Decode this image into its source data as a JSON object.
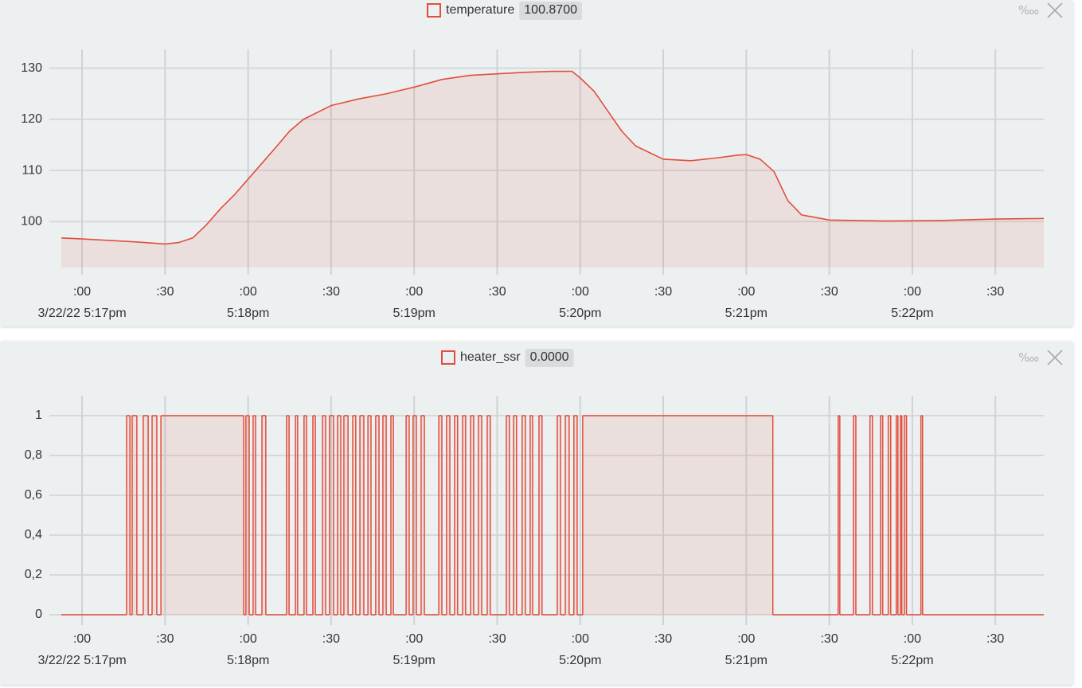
{
  "chart_data": [
    {
      "type": "line",
      "fill": true,
      "grid": true,
      "xlim": [
        "2022-03-22T17:16:52.5",
        "2022-03-22T17:22:47.5"
      ],
      "xticks": [
        {
          "value": "2022-03-22T17:17:00",
          "label": ":00"
        },
        {
          "value": "2022-03-22T17:17:30",
          "label": ":30"
        },
        {
          "value": "2022-03-22T17:18:00",
          "label": ":00"
        },
        {
          "value": "2022-03-22T17:18:30",
          "label": ":30"
        },
        {
          "value": "2022-03-22T17:19:00",
          "label": ":00"
        },
        {
          "value": "2022-03-22T17:19:30",
          "label": ":30"
        },
        {
          "value": "2022-03-22T17:20:00",
          "label": ":00"
        },
        {
          "value": "2022-03-22T17:20:30",
          "label": ":30"
        },
        {
          "value": "2022-03-22T17:21:00",
          "label": ":00"
        },
        {
          "value": "2022-03-22T17:21:30",
          "label": ":30"
        },
        {
          "value": "2022-03-22T17:22:00",
          "label": ":00"
        },
        {
          "value": "2022-03-22T17:22:30",
          "label": ":30"
        }
      ],
      "xticks_major": [
        {
          "value": "2022-03-22T17:17:00",
          "label": "3/22/22 5:17pm"
        },
        {
          "value": "2022-03-22T17:18:00",
          "label": "5:18pm"
        },
        {
          "value": "2022-03-22T17:19:00",
          "label": "5:19pm"
        },
        {
          "value": "2022-03-22T17:20:00",
          "label": "5:20pm"
        },
        {
          "value": "2022-03-22T17:21:00",
          "label": "5:21pm"
        },
        {
          "value": "2022-03-22T17:22:00",
          "label": "5:22pm"
        }
      ],
      "ylim": [
        91,
        134
      ],
      "yticks": [
        100,
        110,
        120,
        130
      ],
      "legend_value": 100.87,
      "legend_value_label": "100.8700",
      "scale_toggle": "‱",
      "x": [
        "2022-03-22T17:16:52.5",
        "2022-03-22T17:17:00",
        "2022-03-22T17:17:10",
        "2022-03-22T17:17:20",
        "2022-03-22T17:17:30",
        "2022-03-22T17:17:35",
        "2022-03-22T17:17:40",
        "2022-03-22T17:17:45",
        "2022-03-22T17:17:50",
        "2022-03-22T17:17:55",
        "2022-03-22T17:18:00",
        "2022-03-22T17:18:05",
        "2022-03-22T17:18:10",
        "2022-03-22T17:18:15",
        "2022-03-22T17:18:20",
        "2022-03-22T17:18:30",
        "2022-03-22T17:18:40",
        "2022-03-22T17:18:50",
        "2022-03-22T17:19:00",
        "2022-03-22T17:19:10",
        "2022-03-22T17:19:20",
        "2022-03-22T17:19:30",
        "2022-03-22T17:19:40",
        "2022-03-22T17:19:50",
        "2022-03-22T17:19:57",
        "2022-03-22T17:20:00",
        "2022-03-22T17:20:05",
        "2022-03-22T17:20:10",
        "2022-03-22T17:20:15",
        "2022-03-22T17:20:20",
        "2022-03-22T17:20:30",
        "2022-03-22T17:20:40",
        "2022-03-22T17:20:50",
        "2022-03-22T17:20:57",
        "2022-03-22T17:21:00",
        "2022-03-22T17:21:05",
        "2022-03-22T17:21:10",
        "2022-03-22T17:21:15",
        "2022-03-22T17:21:20",
        "2022-03-22T17:21:30",
        "2022-03-22T17:21:50",
        "2022-03-22T17:22:10",
        "2022-03-22T17:22:30",
        "2022-03-22T17:22:47.5"
      ],
      "series": [
        {
          "name": "temperature",
          "color": "#e24d3c",
          "values": [
            96.8,
            96.6,
            96.3,
            96.0,
            95.6,
            95.9,
            96.8,
            99.4,
            102.5,
            105.2,
            108.3,
            111.4,
            114.5,
            117.7,
            120,
            122.7,
            124,
            125,
            126.3,
            127.8,
            128.6,
            128.9,
            129.2,
            129.4,
            129.4,
            128.1,
            125.5,
            121.6,
            117.7,
            114.8,
            112.2,
            111.9,
            112.5,
            113.0,
            113.1,
            112.2,
            109.8,
            104.1,
            101.3,
            100.3,
            100.1,
            100.2,
            100.5,
            100.6
          ]
        }
      ]
    },
    {
      "type": "line",
      "fill": true,
      "step": "after",
      "grid": true,
      "xlim": [
        "2022-03-22T17:16:52.5",
        "2022-03-22T17:22:47.5"
      ],
      "xticks": [
        {
          "value": "2022-03-22T17:17:00",
          "label": ":00"
        },
        {
          "value": "2022-03-22T17:17:30",
          "label": ":30"
        },
        {
          "value": "2022-03-22T17:18:00",
          "label": ":00"
        },
        {
          "value": "2022-03-22T17:18:30",
          "label": ":30"
        },
        {
          "value": "2022-03-22T17:19:00",
          "label": ":00"
        },
        {
          "value": "2022-03-22T17:19:30",
          "label": ":30"
        },
        {
          "value": "2022-03-22T17:20:00",
          "label": ":00"
        },
        {
          "value": "2022-03-22T17:20:30",
          "label": ":30"
        },
        {
          "value": "2022-03-22T17:21:00",
          "label": ":00"
        },
        {
          "value": "2022-03-22T17:21:30",
          "label": ":30"
        },
        {
          "value": "2022-03-22T17:22:00",
          "label": ":00"
        },
        {
          "value": "2022-03-22T17:22:30",
          "label": ":30"
        }
      ],
      "xticks_major": [
        {
          "value": "2022-03-22T17:17:00",
          "label": "3/22/22 5:17pm"
        },
        {
          "value": "2022-03-22T17:18:00",
          "label": "5:18pm"
        },
        {
          "value": "2022-03-22T17:19:00",
          "label": "5:19pm"
        },
        {
          "value": "2022-03-22T17:20:00",
          "label": "5:20pm"
        },
        {
          "value": "2022-03-22T17:21:00",
          "label": "5:21pm"
        },
        {
          "value": "2022-03-22T17:22:00",
          "label": "5:22pm"
        }
      ],
      "ylim": [
        -0.05,
        1.1
      ],
      "yticks": [
        0,
        {
          "value": 0.2,
          "label": "0,2"
        },
        {
          "value": 0.4,
          "label": "0,4"
        },
        {
          "value": 0.6,
          "label": "0,6"
        },
        {
          "value": 0.8,
          "label": "0,8"
        },
        1
      ],
      "legend_value": 0,
      "legend_value_label": "0.0000",
      "scale_toggle": "‱",
      "x": [
        "2022-03-22T17:16:52.5",
        "2022-03-22T17:17:16.1",
        "2022-03-22T17:17:17.3",
        "2022-03-22T17:17:18.1",
        "2022-03-22T17:17:19.8",
        "2022-03-22T17:17:22.1",
        "2022-03-22T17:17:23.9",
        "2022-03-22T17:17:25.3",
        "2022-03-22T17:17:27.0",
        "2022-03-22T17:17:28.5",
        "2022-03-22T17:17:58.4",
        "2022-03-22T17:17:59.2",
        "2022-03-22T17:18:00.4",
        "2022-03-22T17:18:01.8",
        "2022-03-22T17:18:02.7",
        "2022-03-22T17:18:05.0",
        "2022-03-22T17:18:06.4",
        "2022-03-22T17:18:13.9",
        "2022-03-22T17:18:14.8",
        "2022-03-22T17:18:17.1",
        "2022-03-22T17:18:17.9",
        "2022-03-22T17:18:20.2",
        "2022-03-22T17:18:21.1",
        "2022-03-22T17:18:23.4",
        "2022-03-22T17:18:24.3",
        "2022-03-22T17:18:26.9",
        "2022-03-22T17:18:28.0",
        "2022-03-22T17:18:29.4",
        "2022-03-22T17:18:30.9",
        "2022-03-22T17:18:32.3",
        "2022-03-22T17:18:33.5",
        "2022-03-22T17:18:34.6",
        "2022-03-22T17:18:36.1",
        "2022-03-22T17:18:37.8",
        "2022-03-22T17:18:38.9",
        "2022-03-22T17:18:40.4",
        "2022-03-22T17:18:41.8",
        "2022-03-22T17:18:43.3",
        "2022-03-22T17:18:44.4",
        "2022-03-22T17:18:46.1",
        "2022-03-22T17:18:47.3",
        "2022-03-22T17:18:48.7",
        "2022-03-22T17:18:49.9",
        "2022-03-22T17:18:51.6",
        "2022-03-22T17:18:52.5",
        "2022-03-22T17:18:57.1",
        "2022-03-22T17:18:58.2",
        "2022-03-22T17:18:59.6",
        "2022-03-22T17:19:00.8",
        "2022-03-22T17:19:02.5",
        "2022-03-22T17:19:03.7",
        "2022-03-22T17:19:08.9",
        "2022-03-22T17:19:10.0",
        "2022-03-22T17:19:11.7",
        "2022-03-22T17:19:12.9",
        "2022-03-22T17:19:14.6",
        "2022-03-22T17:19:15.7",
        "2022-03-22T17:19:17.5",
        "2022-03-22T17:19:18.6",
        "2022-03-22T17:19:20.4",
        "2022-03-22T17:19:21.5",
        "2022-03-22T17:19:23.2",
        "2022-03-22T17:19:24.4",
        "2022-03-22T17:19:26.4",
        "2022-03-22T17:19:27.5",
        "2022-03-22T17:19:33.3",
        "2022-03-22T17:19:34.4",
        "2022-03-22T17:19:35.9",
        "2022-03-22T17:19:37.0",
        "2022-03-22T17:19:39.0",
        "2022-03-22T17:19:40.2",
        "2022-03-22T17:19:41.9",
        "2022-03-22T17:19:42.8",
        "2022-03-22T17:19:45.1",
        "2022-03-22T17:19:46.2",
        "2022-03-22T17:19:51.7",
        "2022-03-22T17:19:52.9",
        "2022-03-22T17:19:54.6",
        "2022-03-22T17:19:56.0",
        "2022-03-22T17:19:57.7",
        "2022-03-22T17:19:58.9",
        "2022-03-22T17:20:00.9",
        "2022-03-22T17:21:09.6",
        "2022-03-22T17:21:33.2",
        "2022-03-22T17:21:33.8",
        "2022-03-22T17:21:38.7",
        "2022-03-22T17:21:39.6",
        "2022-03-22T17:21:44.7",
        "2022-03-22T17:21:45.6",
        "2022-03-22T17:21:48.5",
        "2022-03-22T17:21:49.3",
        "2022-03-22T17:21:51.3",
        "2022-03-22T17:21:52.2",
        "2022-03-22T17:21:54.2",
        "2022-03-22T17:21:54.8",
        "2022-03-22T17:21:55.7",
        "2022-03-22T17:21:56.2",
        "2022-03-22T17:21:57.1",
        "2022-03-22T17:21:57.9",
        "2022-03-22T17:22:03.1",
        "2022-03-22T17:22:03.7",
        "2022-03-22T17:22:47.5"
      ],
      "series": [
        {
          "name": "heater_ssr",
          "color": "#e24d3c",
          "values": [
            0,
            1,
            0,
            1,
            0,
            1,
            0,
            1,
            0,
            1,
            0,
            1,
            0,
            1,
            0,
            1,
            0,
            1,
            0,
            1,
            0,
            1,
            0,
            1,
            0,
            1,
            0,
            1,
            0,
            1,
            0,
            1,
            0,
            1,
            0,
            1,
            0,
            1,
            0,
            1,
            0,
            1,
            0,
            1,
            0,
            1,
            0,
            1,
            0,
            1,
            0,
            1,
            0,
            1,
            0,
            1,
            0,
            1,
            0,
            1,
            0,
            1,
            0,
            1,
            0,
            1,
            0,
            1,
            0,
            1,
            0,
            1,
            0,
            1,
            0,
            1,
            0,
            1,
            0,
            1,
            0,
            1,
            0,
            1,
            0,
            1,
            0,
            1,
            0,
            1,
            0,
            1,
            0,
            1,
            0,
            1,
            0,
            1,
            0,
            1,
            0,
            0
          ]
        }
      ]
    }
  ]
}
